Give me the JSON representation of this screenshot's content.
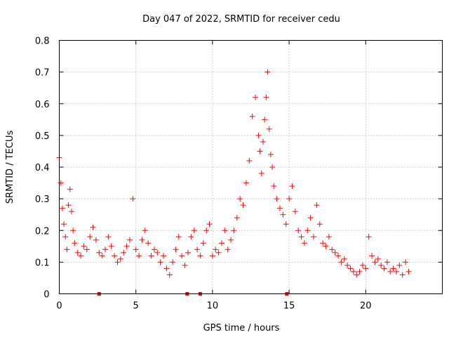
{
  "chart_data": {
    "type": "scatter",
    "title": "Day 047 of 2022, SRMTID for receiver cedu",
    "xlabel": "GPS time / hours",
    "ylabel": "SRMTID / TECUs",
    "xlim": [
      0,
      25
    ],
    "ylim": [
      0,
      0.8
    ],
    "xticks": [
      "0",
      "5",
      "10",
      "15",
      "20"
    ],
    "xtick_values": [
      0,
      5,
      10,
      15,
      20
    ],
    "yticks": [
      "0",
      "0.1",
      "0.2",
      "0.3",
      "0.4",
      "0.5",
      "0.6",
      "0.7",
      "0.8"
    ],
    "ytick_values": [
      0,
      0.1,
      0.2,
      0.3,
      0.4,
      0.5,
      0.6,
      0.7,
      0.8
    ],
    "grid": true,
    "marker": "+",
    "color": "#ff0000",
    "gap_markers_x": [
      2.6,
      8.35,
      9.2,
      14.85
    ],
    "series": [
      {
        "name": "SRMTID",
        "x": [
          0.0,
          0.1,
          0.2,
          0.3,
          0.4,
          0.5,
          0.6,
          0.7,
          0.8,
          0.9,
          1.0,
          1.2,
          1.4,
          1.6,
          1.8,
          2.0,
          2.2,
          2.4,
          2.6,
          2.8,
          3.0,
          3.2,
          3.4,
          3.6,
          3.8,
          4.0,
          4.2,
          4.4,
          4.6,
          4.8,
          5.0,
          5.2,
          5.4,
          5.6,
          5.8,
          6.0,
          6.2,
          6.4,
          6.6,
          6.8,
          7.0,
          7.2,
          7.4,
          7.6,
          7.8,
          8.0,
          8.2,
          8.4,
          8.6,
          8.8,
          9.0,
          9.2,
          9.4,
          9.6,
          9.8,
          10.0,
          10.2,
          10.4,
          10.6,
          10.8,
          11.0,
          11.2,
          11.4,
          11.6,
          11.8,
          12.0,
          12.2,
          12.4,
          12.6,
          12.8,
          13.0,
          13.1,
          13.2,
          13.3,
          13.4,
          13.5,
          13.6,
          13.7,
          13.8,
          13.9,
          14.0,
          14.2,
          14.4,
          14.6,
          14.8,
          15.0,
          15.2,
          15.4,
          15.6,
          15.8,
          16.0,
          16.2,
          16.4,
          16.6,
          16.8,
          17.0,
          17.2,
          17.4,
          17.6,
          17.8,
          18.0,
          18.2,
          18.4,
          18.6,
          18.8,
          19.0,
          19.2,
          19.4,
          19.6,
          19.8,
          20.0,
          20.2,
          20.4,
          20.6,
          20.8,
          21.0,
          21.2,
          21.4,
          21.6,
          21.8,
          22.0,
          22.2,
          22.4,
          22.6,
          22.8
        ],
        "y": [
          0.43,
          0.35,
          0.27,
          0.22,
          0.18,
          0.14,
          0.28,
          0.33,
          0.26,
          0.2,
          0.16,
          0.13,
          0.12,
          0.15,
          0.14,
          0.18,
          0.21,
          0.17,
          0.13,
          0.12,
          0.14,
          0.18,
          0.15,
          0.12,
          0.1,
          0.11,
          0.13,
          0.15,
          0.17,
          0.3,
          0.14,
          0.12,
          0.17,
          0.2,
          0.16,
          0.12,
          0.14,
          0.13,
          0.1,
          0.12,
          0.08,
          0.06,
          0.1,
          0.14,
          0.18,
          0.12,
          0.09,
          0.13,
          0.18,
          0.2,
          0.14,
          0.12,
          0.16,
          0.2,
          0.22,
          0.12,
          0.14,
          0.13,
          0.16,
          0.2,
          0.14,
          0.17,
          0.2,
          0.24,
          0.3,
          0.28,
          0.35,
          0.42,
          0.56,
          0.62,
          0.5,
          0.45,
          0.38,
          0.48,
          0.55,
          0.62,
          0.7,
          0.52,
          0.44,
          0.4,
          0.34,
          0.3,
          0.27,
          0.25,
          0.22,
          0.3,
          0.34,
          0.26,
          0.2,
          0.18,
          0.16,
          0.2,
          0.24,
          0.18,
          0.28,
          0.22,
          0.16,
          0.15,
          0.18,
          0.14,
          0.13,
          0.12,
          0.1,
          0.11,
          0.09,
          0.08,
          0.07,
          0.06,
          0.07,
          0.09,
          0.08,
          0.18,
          0.12,
          0.1,
          0.11,
          0.09,
          0.08,
          0.1,
          0.07,
          0.08,
          0.07,
          0.09,
          0.06,
          0.1,
          0.07
        ]
      }
    ]
  }
}
